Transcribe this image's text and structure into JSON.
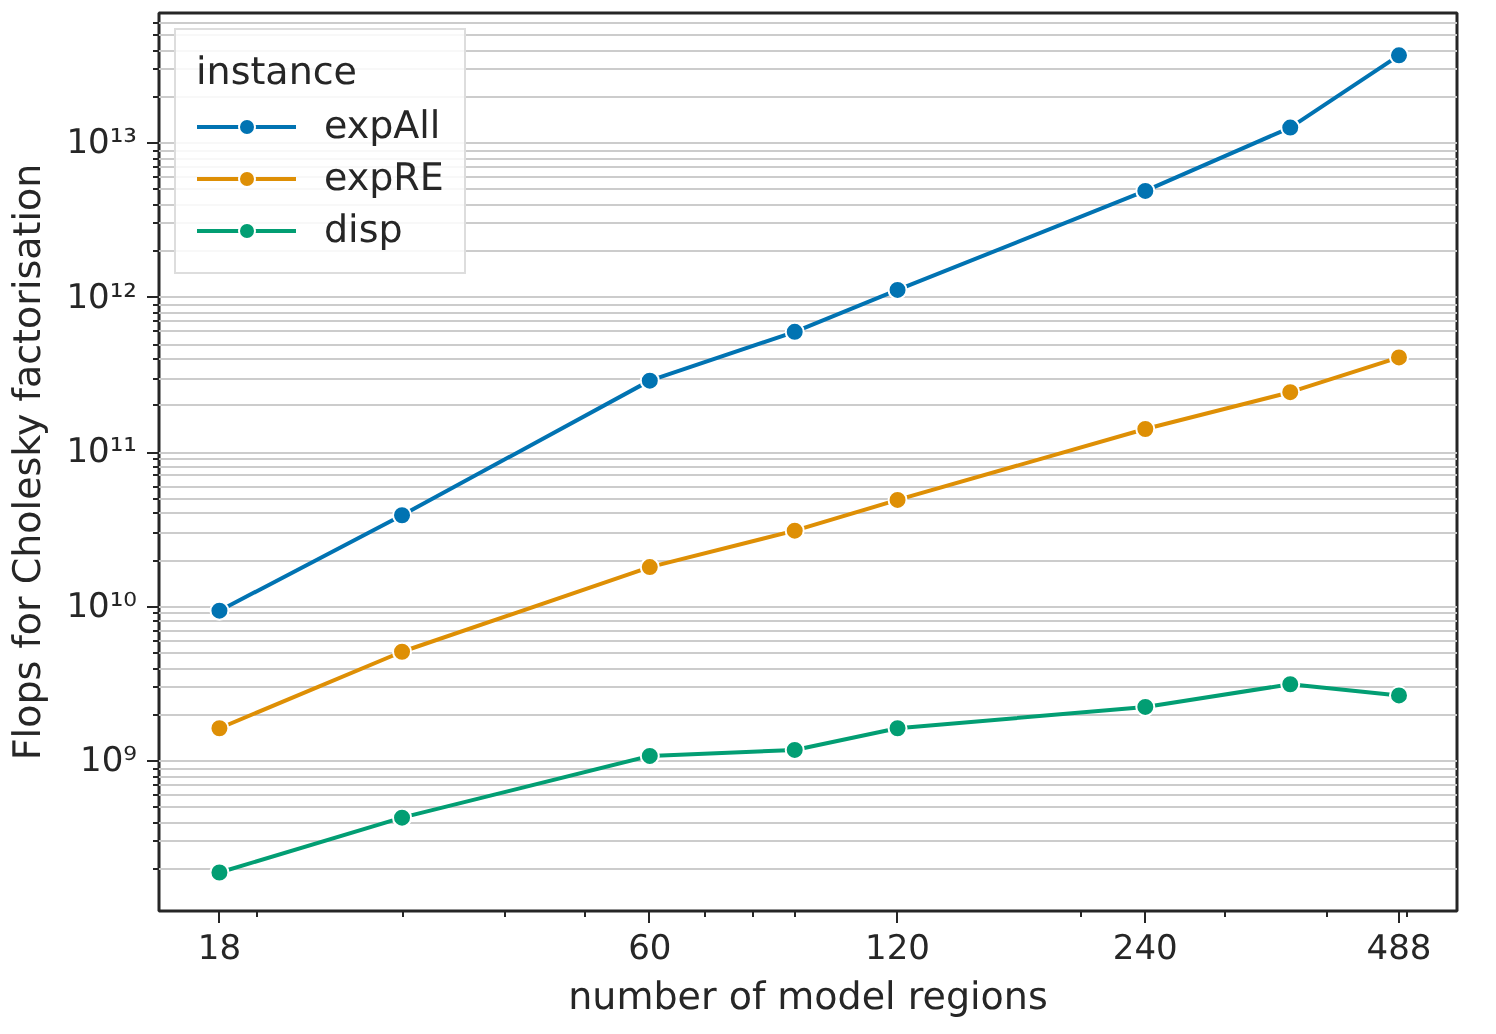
{
  "chart_data": {
    "type": "line",
    "xlabel": "number of model regions",
    "ylabel": "Flops for Cholesky factorisation",
    "legend_title": "instance",
    "x": [
      18,
      30,
      60,
      90,
      120,
      240,
      360,
      488
    ],
    "series": [
      {
        "name": "expAll",
        "color": "#0173b2",
        "values": [
          9400000000.0,
          39000000000.0,
          290000000000.0,
          600000000000.0,
          1120000000000.0,
          4900000000000.0,
          12600000000000.0,
          37000000000000.0
        ]
      },
      {
        "name": "expRE",
        "color": "#de8f05",
        "values": [
          1630000000.0,
          5100000000.0,
          18000000000.0,
          31000000000.0,
          49000000000.0,
          141000000000.0,
          244000000000.0,
          410000000000.0
        ]
      },
      {
        "name": "disp",
        "color": "#029e73",
        "values": [
          190000000.0,
          430000000.0,
          1080000000.0,
          1180000000.0,
          1630000000.0,
          2240000000.0,
          3140000000.0,
          2660000000.0
        ]
      }
    ],
    "log": "xy",
    "xlim": [
      15.2,
      574
    ],
    "ylim": [
      107000000.0,
      69500000000000.0
    ],
    "xticks": [
      18,
      60,
      120,
      240,
      488
    ],
    "yticks": [
      {
        "value": 1000000000.0,
        "label": "10⁹"
      },
      {
        "value": 10000000000.0,
        "label": "10¹⁰"
      },
      {
        "value": 100000000000.0,
        "label": "10¹¹"
      },
      {
        "value": 1000000000000.0,
        "label": "10¹²"
      },
      {
        "value": 10000000000000.0,
        "label": "10¹³"
      }
    ],
    "grid": "y",
    "legend": "top left",
    "marker": "circle",
    "line_style": "solid"
  }
}
